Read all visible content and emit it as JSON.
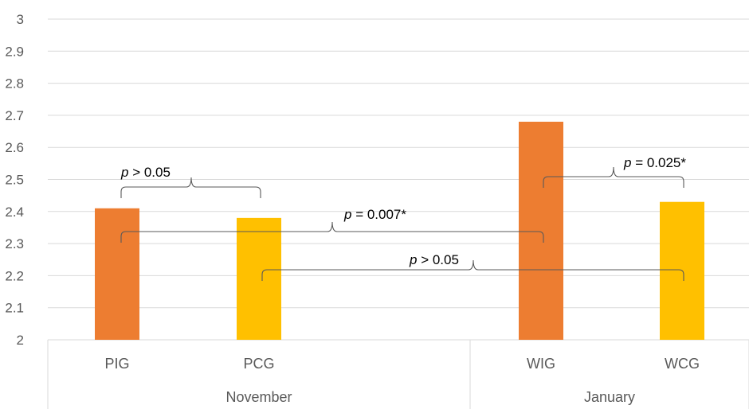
{
  "chart_data": {
    "type": "bar",
    "title": "",
    "xlabel": "",
    "ylabel": "",
    "ylim": [
      2,
      3
    ],
    "yticks": [
      "2",
      "2.1",
      "2.2",
      "2.3",
      "2.4",
      "2.5",
      "2.6",
      "2.7",
      "2.8",
      "2.9",
      "3"
    ],
    "grid": true,
    "groups": [
      {
        "label": "November",
        "categories": [
          "PIG",
          "PCG"
        ]
      },
      {
        "label": "January",
        "categories": [
          "WIG",
          "WCG"
        ]
      }
    ],
    "categories": [
      "PIG",
      "PCG",
      "WIG",
      "WCG"
    ],
    "values": [
      2.41,
      2.38,
      2.68,
      2.43
    ],
    "bar_colors": [
      "#ED7D31",
      "#FFC000",
      "#ED7D31",
      "#FFC000"
    ],
    "comparisons": [
      {
        "from": "PIG",
        "to": "PCG",
        "p_prefix": "p",
        "p_text": " > 0.05"
      },
      {
        "from": "WIG",
        "to": "WCG",
        "p_prefix": "p",
        "p_text": " = 0.025*"
      },
      {
        "from": "PIG",
        "to": "WIG",
        "p_prefix": "p",
        "p_text": " = 0.007*"
      },
      {
        "from": "PCG",
        "to": "WCG",
        "p_prefix": "p",
        "p_text": " > 0.05"
      }
    ]
  }
}
